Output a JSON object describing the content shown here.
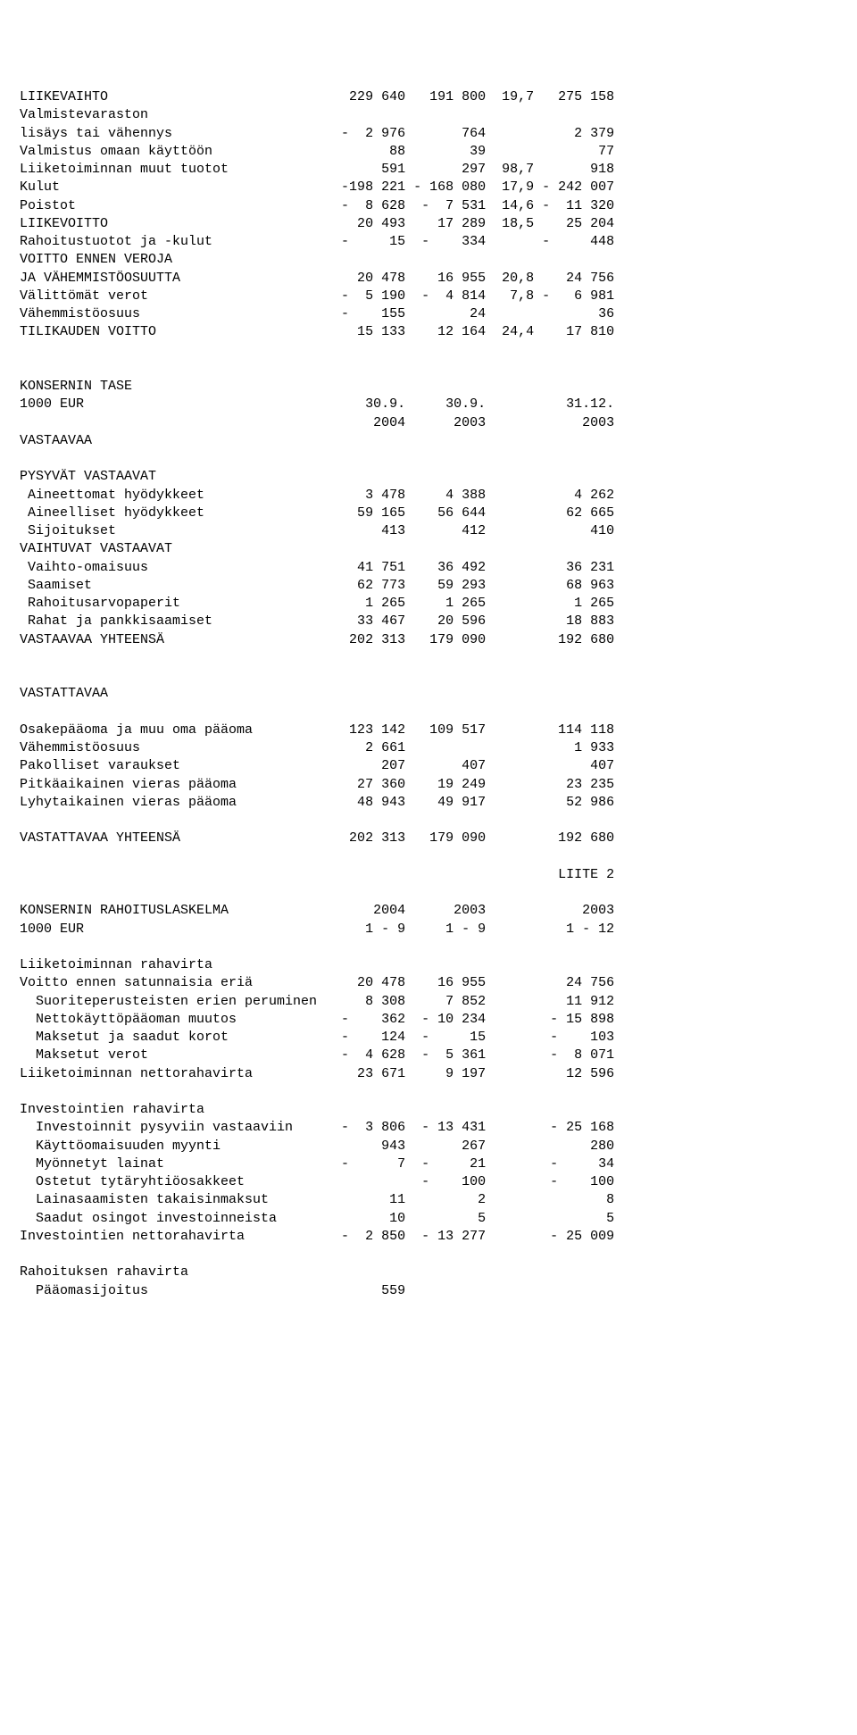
{
  "doc": {
    "font_family": "Courier New",
    "font_size_pt": 12,
    "text_color": "#000000",
    "background_color": "#ffffff",
    "col_widths": {
      "label": 38,
      "c1": 10,
      "c2": 10,
      "c3": 5,
      "pct": 6,
      "c4": 10
    },
    "section1_rows": [
      {
        "label": "LIIKEVAIHTO",
        "c1": "229 640",
        "c2": "191 800",
        "pct": "19,7",
        "c4": "275 158"
      },
      {
        "label": "Valmistevaraston",
        "c1": "",
        "c2": "",
        "pct": "",
        "c4": ""
      },
      {
        "label": "lisäys tai vähennys",
        "c1": "-  2 976",
        "c2": "764",
        "pct": "",
        "c4": "2 379"
      },
      {
        "label": "Valmistus omaan käyttöön",
        "c1": "88",
        "c2": "39",
        "pct": "",
        "c4": "77"
      },
      {
        "label": "Liiketoiminnan muut tuotot",
        "c1": "591",
        "c2": "297",
        "pct": "98,7",
        "c4": "918"
      },
      {
        "label": "Kulut",
        "c1": "-198 221",
        "c2": "- 168 080",
        "pct": "17,9",
        "c4": "- 242 007"
      },
      {
        "label": "Poistot",
        "c1": "-  8 628",
        "c2": "-  7 531",
        "pct": "14,6",
        "c4": "-  11 320"
      },
      {
        "label": "LIIKEVOITTO",
        "c1": "20 493",
        "c2": "17 289",
        "pct": "18,5",
        "c4": "25 204"
      },
      {
        "label": "Rahoitustuotot ja -kulut",
        "c1": "-     15",
        "c2": "-    334",
        "pct": "",
        "c4": "-     448"
      },
      {
        "label": "VOITTO ENNEN VEROJA",
        "c1": "",
        "c2": "",
        "pct": "",
        "c4": ""
      },
      {
        "label": "JA VÄHEMMISTÖOSUUTTA",
        "c1": "20 478",
        "c2": "16 955",
        "pct": "20,8",
        "c4": "24 756"
      },
      {
        "label": "Välittömät verot",
        "c1": "-  5 190",
        "c2": "-  4 814",
        "pct": "7,8",
        "c4": "-   6 981"
      },
      {
        "label": "Vähemmistöosuus",
        "c1": "-    155",
        "c2": "24",
        "pct": "",
        "c4": "36"
      },
      {
        "label": "TILIKAUDEN VOITTO",
        "c1": "15 133",
        "c2": "12 164",
        "pct": "24,4",
        "c4": "17 810"
      }
    ],
    "section2_header": [
      {
        "label": "KONSERNIN TASE",
        "c1": "",
        "c2": "",
        "c4": ""
      },
      {
        "label": "1000 EUR",
        "c1": "30.9.",
        "c2": "30.9.",
        "c4": "31.12."
      },
      {
        "label": "",
        "c1": "2004",
        "c2": "2003",
        "c4": "2003"
      },
      {
        "label": "VASTAAVAA",
        "c1": "",
        "c2": "",
        "c4": ""
      }
    ],
    "section2_rows": [
      {
        "label": "PYSYVÄT VASTAAVAT",
        "c1": "",
        "c2": "",
        "c4": ""
      },
      {
        "label": " Aineettomat hyödykkeet",
        "c1": "3 478",
        "c2": "4 388",
        "c4": "4 262"
      },
      {
        "label": " Aineelliset hyödykkeet",
        "c1": "59 165",
        "c2": "56 644",
        "c4": "62 665"
      },
      {
        "label": " Sijoitukset",
        "c1": "413",
        "c2": "412",
        "c4": "410"
      },
      {
        "label": "VAIHTUVAT VASTAAVAT",
        "c1": "",
        "c2": "",
        "c4": ""
      },
      {
        "label": " Vaihto-omaisuus",
        "c1": "41 751",
        "c2": "36 492",
        "c4": "36 231"
      },
      {
        "label": " Saamiset",
        "c1": "62 773",
        "c2": "59 293",
        "c4": "68 963"
      },
      {
        "label": " Rahoitusarvopaperit",
        "c1": "1 265",
        "c2": "1 265",
        "c4": "1 265"
      },
      {
        "label": " Rahat ja pankkisaamiset",
        "c1": "33 467",
        "c2": "20 596",
        "c4": "18 883"
      },
      {
        "label": "VASTAAVAA YHTEENSÄ",
        "c1": "202 313",
        "c2": "179 090",
        "c4": "192 680"
      }
    ],
    "section3_rows": [
      {
        "label": "VASTATTAVAA",
        "c1": "",
        "c2": "",
        "c4": ""
      },
      {
        "label": "",
        "c1": "",
        "c2": "",
        "c4": ""
      },
      {
        "label": "Osakepääoma ja muu oma pääoma",
        "c1": "123 142",
        "c2": "109 517",
        "c4": "114 118"
      },
      {
        "label": "Vähemmistöosuus",
        "c1": "2 661",
        "c2": "",
        "c4": "1 933"
      },
      {
        "label": "Pakolliset varaukset",
        "c1": "207",
        "c2": "407",
        "c4": "407"
      },
      {
        "label": "Pitkäaikainen vieras pääoma",
        "c1": "27 360",
        "c2": "19 249",
        "c4": "23 235"
      },
      {
        "label": "Lyhytaikainen vieras pääoma",
        "c1": "48 943",
        "c2": "49 917",
        "c4": "52 986"
      },
      {
        "label": "",
        "c1": "",
        "c2": "",
        "c4": ""
      },
      {
        "label": "VASTATTAVAA YHTEENSÄ",
        "c1": "202 313",
        "c2": "179 090",
        "c4": "192 680"
      }
    ],
    "liite2": "LIITE 2",
    "section4_header": [
      {
        "label": "KONSERNIN RAHOITUSLASKELMA",
        "c1": "2004",
        "c2": "2003",
        "c4": "2003"
      },
      {
        "label": "1000 EUR",
        "c1": "1 - 9",
        "c2": "1 - 9",
        "c4": "1 - 12"
      }
    ],
    "section4_rows": [
      {
        "label": "",
        "c1": "",
        "c2": "",
        "c4": ""
      },
      {
        "label": "Liiketoiminnan rahavirta",
        "c1": "",
        "c2": "",
        "c4": ""
      },
      {
        "label": "Voitto ennen satunnaisia eriä",
        "c1": "20 478",
        "c2": "16 955",
        "c4": "24 756"
      },
      {
        "label": "  Suoriteperusteisten erien peruminen",
        "c1": "8 308",
        "c2": "7 852",
        "c4": "11 912"
      },
      {
        "label": "  Nettokäyttöpääoman muutos",
        "c1": "-    362",
        "c2": "- 10 234",
        "c4": "- 15 898"
      },
      {
        "label": "  Maksetut ja saadut korot",
        "c1": "-    124",
        "c2": "-     15",
        "c4": "-    103"
      },
      {
        "label": "  Maksetut verot",
        "c1": "-  4 628",
        "c2": "-  5 361",
        "c4": "-  8 071"
      },
      {
        "label": "Liiketoiminnan nettorahavirta",
        "c1": "23 671",
        "c2": "9 197",
        "c4": "12 596"
      },
      {
        "label": "",
        "c1": "",
        "c2": "",
        "c4": ""
      },
      {
        "label": "Investointien rahavirta",
        "c1": "",
        "c2": "",
        "c4": ""
      },
      {
        "label": "  Investoinnit pysyviin vastaaviin",
        "c1": "-  3 806",
        "c2": "- 13 431",
        "c4": "- 25 168"
      },
      {
        "label": "  Käyttöomaisuuden myynti",
        "c1": "943",
        "c2": "267",
        "c4": "280"
      },
      {
        "label": "  Myönnetyt lainat",
        "c1": "-      7",
        "c2": "-     21",
        "c4": "-     34"
      },
      {
        "label": "  Ostetut tytäryhtiöosakkeet",
        "c1": "",
        "c2": "-    100",
        "c4": "-    100"
      },
      {
        "label": "  Lainasaamisten takaisinmaksut",
        "c1": "11",
        "c2": "2",
        "c4": "8"
      },
      {
        "label": "  Saadut osingot investoinneista",
        "c1": "10",
        "c2": "5",
        "c4": "5"
      },
      {
        "label": "Investointien nettorahavirta",
        "c1": "-  2 850",
        "c2": "- 13 277",
        "c4": "- 25 009"
      },
      {
        "label": "",
        "c1": "",
        "c2": "",
        "c4": ""
      },
      {
        "label": "Rahoituksen rahavirta",
        "c1": "",
        "c2": "",
        "c4": ""
      },
      {
        "label": "  Pääomasijoitus",
        "c1": "559",
        "c2": "",
        "c4": ""
      }
    ]
  }
}
